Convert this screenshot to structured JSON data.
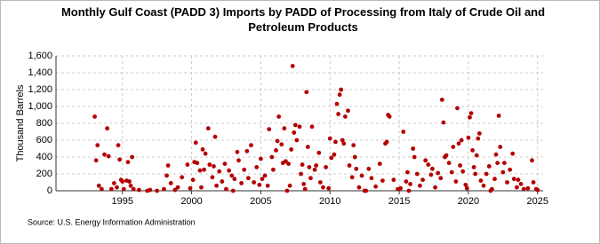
{
  "chart_data": {
    "type": "scatter",
    "title": "Monthly Gulf Coast (PADD 3) Imports by PADD of Processing from Italy of Crude Oil and Petroleum Products",
    "y_label": "Thousand Barrels",
    "source": "Source: U.S. Energy Information Administration",
    "color": "#b40000",
    "grid": true,
    "xlim": [
      1990.2,
      2025.4
    ],
    "xticks": [
      1995,
      2000,
      2005,
      2010,
      2015,
      2020,
      2025
    ],
    "ylim": [
      0,
      1600
    ],
    "yticks": [
      0,
      200,
      400,
      600,
      800,
      {
        "value": 1000,
        "label": "1,000"
      },
      {
        "value": 1200,
        "label": "1,200"
      },
      {
        "value": 1400,
        "label": "1,400"
      },
      {
        "value": 1600,
        "label": "1,600"
      }
    ],
    "x": [
      1993.0,
      1993.1,
      1993.2,
      1993.3,
      1993.5,
      1993.7,
      1993.9,
      1994.0,
      1994.2,
      1994.4,
      1994.6,
      1994.7,
      1994.8,
      1994.9,
      1995.0,
      1995.1,
      1995.3,
      1995.4,
      1995.5,
      1995.6,
      1995.7,
      1995.8,
      1996.2,
      1997.0,
      1997.5,
      1998.0,
      1998.2,
      1998.3,
      1998.5,
      1998.8,
      1999.0,
      1999.3,
      1999.7,
      1999.9,
      2000.1,
      2000.2,
      2000.3,
      2000.4,
      2000.6,
      2000.7,
      2000.8,
      2000.9,
      2001.0,
      2001.2,
      2001.3,
      2001.5,
      2001.6,
      2001.7,
      2001.8,
      2002.0,
      2002.2,
      2002.4,
      2002.5,
      2002.7,
      2002.9,
      2003.1,
      2003.3,
      2003.4,
      2003.6,
      2003.8,
      2004.0,
      2004.1,
      2004.3,
      2004.5,
      2004.7,
      2004.9,
      2005.0,
      2005.1,
      2005.3,
      2005.5,
      2005.6,
      2005.8,
      2005.9,
      2006.1,
      2006.2,
      2006.3,
      2006.5,
      2006.6,
      2006.7,
      2006.8,
      2007.0,
      2007.2,
      2007.3,
      2007.4,
      2007.5,
      2007.6,
      2007.8,
      2007.9,
      2008.0,
      2008.1,
      2008.3,
      2008.4,
      2008.5,
      2008.6,
      2008.7,
      2008.9,
      2009.0,
      2009.2,
      2009.3,
      2009.5,
      2009.7,
      2009.9,
      2008.2,
      2007.1,
      2010.0,
      2010.1,
      2010.3,
      2010.4,
      2010.5,
      2010.6,
      2010.7,
      2010.8,
      2010.9,
      2011.0,
      2011.1,
      2011.3,
      2011.4,
      2011.6,
      2011.7,
      2011.8,
      2011.9,
      2012.1,
      2012.3,
      2012.5,
      2012.8,
      2013.0,
      2013.3,
      2013.6,
      2013.8,
      2014.0,
      2014.1,
      2014.2,
      2014.3,
      2014.6,
      2014.9,
      2015.1,
      2015.3,
      2015.5,
      2015.6,
      2015.8,
      2016.0,
      2016.1,
      2016.3,
      2016.5,
      2016.7,
      2016.9,
      2017.1,
      2017.3,
      2017.4,
      2017.6,
      2017.8,
      2018.0,
      2018.1,
      2018.2,
      2018.3,
      2018.4,
      2018.6,
      2018.8,
      2018.9,
      2019.1,
      2019.2,
      2019.3,
      2019.4,
      2019.5,
      2019.6,
      2019.8,
      2019.9,
      2020.0,
      2020.1,
      2020.2,
      2020.3,
      2020.4,
      2020.5,
      2020.6,
      2020.7,
      2020.8,
      2020.9,
      2021.1,
      2021.3,
      2021.5,
      2021.7,
      2021.9,
      2022.0,
      2022.1,
      2022.2,
      2022.3,
      2022.5,
      2022.6,
      2022.8,
      2023.0,
      2023.2,
      2023.3,
      2023.5,
      2023.6,
      2023.8,
      2024.0,
      2024.3,
      2024.6,
      2024.7,
      2024.9,
      2025.0,
      1996.8,
      2003.0,
      2006.9,
      2012.6,
      2015.7,
      2021.6
    ],
    "values": [
      880,
      360,
      540,
      60,
      20,
      430,
      740,
      410,
      20,
      90,
      40,
      540,
      370,
      130,
      110,
      20,
      120,
      340,
      110,
      60,
      400,
      20,
      10,
      10,
      0,
      20,
      180,
      300,
      90,
      10,
      40,
      160,
      310,
      30,
      130,
      340,
      570,
      330,
      240,
      40,
      490,
      250,
      440,
      740,
      310,
      160,
      290,
      640,
      60,
      230,
      110,
      320,
      20,
      240,
      180,
      140,
      460,
      360,
      90,
      250,
      470,
      150,
      540,
      100,
      280,
      70,
      380,
      140,
      180,
      60,
      730,
      400,
      250,
      480,
      590,
      880,
      550,
      330,
      740,
      350,
      320,
      490,
      1480,
      690,
      780,
      600,
      760,
      200,
      310,
      80,
      1170,
      520,
      280,
      150,
      760,
      250,
      300,
      450,
      100,
      40,
      280,
      30,
      20,
      60,
      620,
      390,
      430,
      580,
      1030,
      910,
      1140,
      1200,
      600,
      560,
      880,
      950,
      300,
      160,
      540,
      400,
      260,
      40,
      180,
      0,
      260,
      150,
      50,
      320,
      120,
      560,
      580,
      900,
      880,
      130,
      20,
      30,
      700,
      110,
      220,
      80,
      500,
      400,
      200,
      60,
      130,
      360,
      310,
      190,
      260,
      40,
      210,
      150,
      1080,
      810,
      400,
      420,
      330,
      220,
      520,
      110,
      980,
      560,
      300,
      600,
      230,
      70,
      30,
      630,
      870,
      920,
      480,
      280,
      200,
      420,
      620,
      680,
      120,
      60,
      200,
      290,
      20,
      140,
      430,
      330,
      890,
      520,
      220,
      330,
      100,
      250,
      440,
      140,
      40,
      130,
      80,
      20,
      30,
      360,
      100,
      20,
      10,
      0,
      0,
      0,
      0,
      0,
      0
    ]
  }
}
